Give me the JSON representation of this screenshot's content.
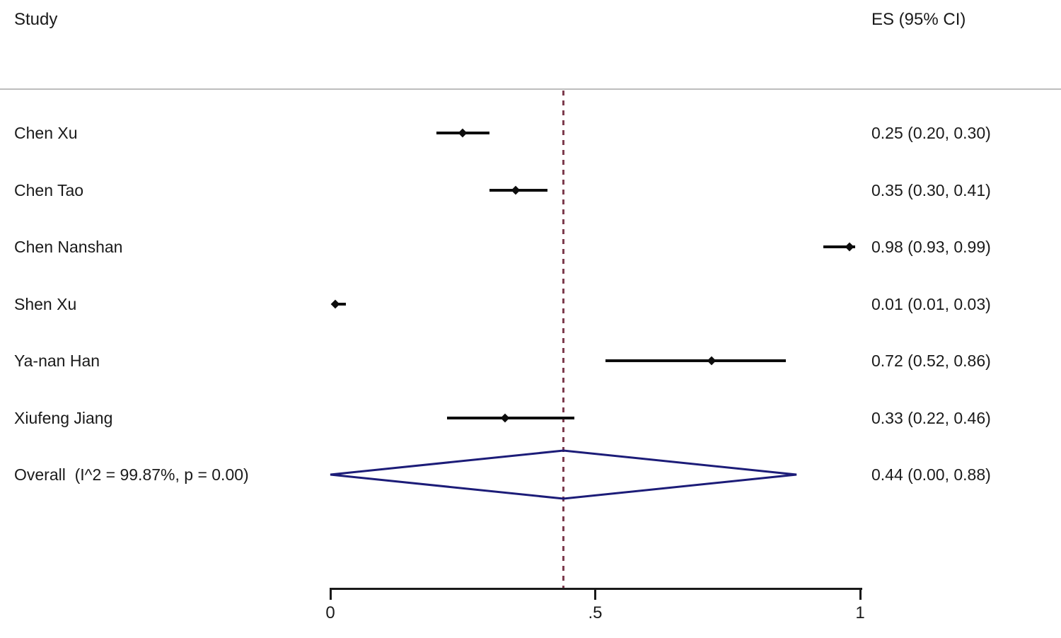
{
  "header": {
    "study_column": "Study",
    "es_column": "ES (95% CI)"
  },
  "chart_data": {
    "type": "forest",
    "x_axis": {
      "range": [
        0,
        1
      ],
      "ticks": [
        {
          "value": 0,
          "label": "0"
        },
        {
          "value": 0.5,
          "label": ".5"
        },
        {
          "value": 1,
          "label": "1"
        }
      ]
    },
    "reference_line_value": 0.44,
    "studies": [
      {
        "name": "Chen Xu",
        "es": 0.25,
        "ci_lower": 0.2,
        "ci_upper": 0.3,
        "es_label": "0.25 (0.20, 0.30)"
      },
      {
        "name": "Chen Tao",
        "es": 0.35,
        "ci_lower": 0.3,
        "ci_upper": 0.41,
        "es_label": "0.35 (0.30, 0.41)"
      },
      {
        "name": "Chen Nanshan",
        "es": 0.98,
        "ci_lower": 0.93,
        "ci_upper": 0.99,
        "es_label": "0.98 (0.93, 0.99)"
      },
      {
        "name": "Shen Xu",
        "es": 0.01,
        "ci_lower": 0.01,
        "ci_upper": 0.03,
        "es_label": "0.01 (0.01, 0.03)"
      },
      {
        "name": "Ya-nan Han",
        "es": 0.72,
        "ci_lower": 0.52,
        "ci_upper": 0.86,
        "es_label": "0.72 (0.52, 0.86)"
      },
      {
        "name": "Xiufeng Jiang",
        "es": 0.33,
        "ci_lower": 0.22,
        "ci_upper": 0.46,
        "es_label": "0.33 (0.22, 0.46)"
      }
    ],
    "overall": {
      "name": "Overall  (I^2 = 99.87%, p = 0.00)",
      "es": 0.44,
      "ci_lower": 0.0,
      "ci_upper": 0.88,
      "es_label": "0.44 (0.00, 0.88)"
    }
  },
  "colors": {
    "text": "#1a1a1a",
    "ci_line": "#0d0d0d",
    "marker": "#0d0d0d",
    "diamond_stroke": "#1c1c78",
    "reference_line": "#7d3c4e",
    "header_rule": "#bdbdbd",
    "axis": "#1a1a1a"
  }
}
